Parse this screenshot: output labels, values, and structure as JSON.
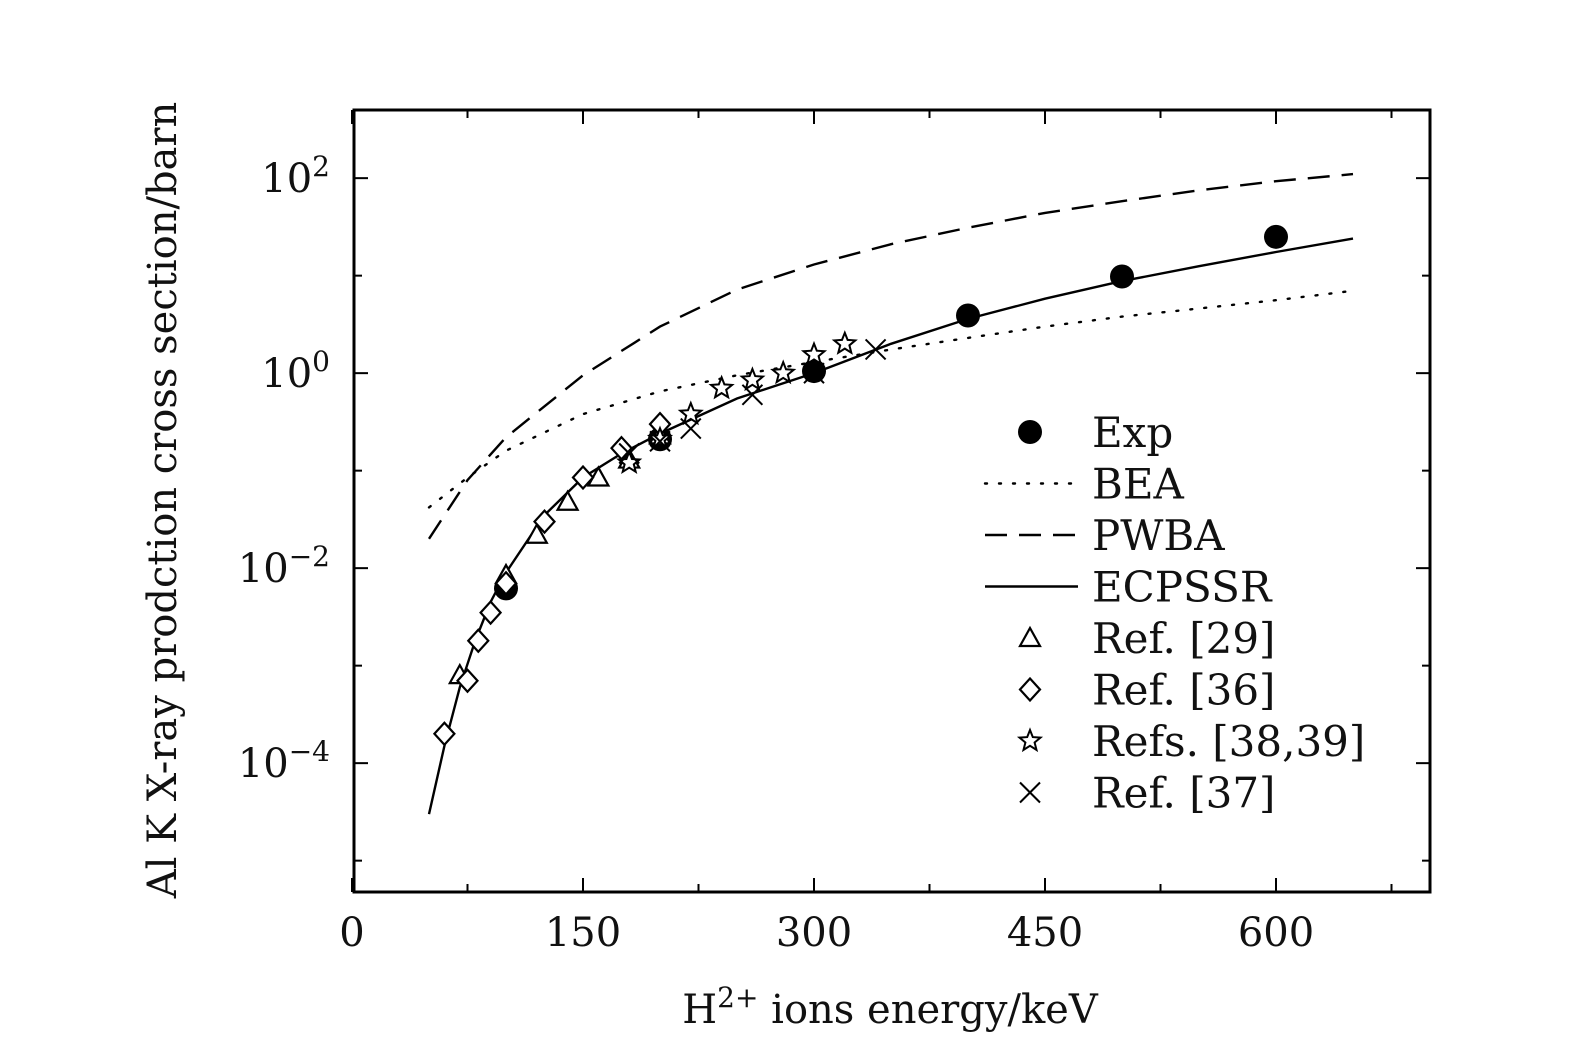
{
  "chart_data": {
    "type": "scatter",
    "xlabel": "ions energy/keV",
    "xlabel_prefix": "H",
    "xlabel_sup": "2+",
    "ylabel": "Al K X-ray prodction cross section/barn",
    "xlim": [
      0,
      700
    ],
    "ylim": [
      5e-06,
      500
    ],
    "yscale": "log",
    "x_ticks": [
      0,
      150,
      300,
      450,
      600
    ],
    "x_tick_labels": [
      "0",
      "150",
      "300",
      "450",
      "600"
    ],
    "y_ticks": [
      {
        "value": 0.0001,
        "base": "10",
        "exp": "−4"
      },
      {
        "value": 0.01,
        "base": "10",
        "exp": "−2"
      },
      {
        "value": 1,
        "base": "10",
        "exp": "0"
      },
      {
        "value": 100,
        "base": "10",
        "exp": "2"
      }
    ],
    "legend_position": "right",
    "series": [
      {
        "name": "Exp",
        "kind": "points",
        "marker": "filled-circle",
        "x": [
          100,
          200,
          300,
          400,
          500,
          600
        ],
        "y": [
          0.0062,
          0.21,
          1.05,
          3.9,
          9.8,
          25
        ]
      },
      {
        "name": "BEA",
        "kind": "line",
        "style": "dotted",
        "x": [
          50,
          75,
          100,
          150,
          200,
          250,
          300,
          350,
          400,
          450,
          500,
          550,
          600,
          650
        ],
        "y": [
          0.042,
          0.085,
          0.16,
          0.38,
          0.65,
          0.95,
          1.3,
          1.75,
          2.3,
          3.0,
          3.8,
          4.6,
          5.6,
          7.0
        ]
      },
      {
        "name": "PWBA",
        "kind": "line",
        "style": "dashed",
        "x": [
          50,
          75,
          100,
          150,
          200,
          250,
          300,
          350,
          400,
          450,
          500,
          550,
          600,
          650
        ],
        "y": [
          0.02,
          0.08,
          0.22,
          0.95,
          3.0,
          7.2,
          13,
          21,
          31,
          44,
          58,
          75,
          93,
          110
        ]
      },
      {
        "name": "ECPSSR",
        "kind": "line",
        "style": "solid",
        "x": [
          50,
          60,
          70,
          80,
          90,
          100,
          125,
          150,
          175,
          200,
          250,
          300,
          350,
          400,
          450,
          500,
          550,
          600,
          650
        ],
        "y": [
          3e-05,
          0.00015,
          0.0006,
          0.0018,
          0.0045,
          0.009,
          0.035,
          0.085,
          0.15,
          0.24,
          0.55,
          1.0,
          2.0,
          3.6,
          5.8,
          8.8,
          12.5,
          17.5,
          24
        ]
      },
      {
        "name": "Ref. [29]",
        "kind": "points",
        "marker": "open-triangle",
        "x": [
          70,
          100,
          120,
          140,
          160,
          180,
          200
        ],
        "y": [
          0.0008,
          0.0085,
          0.022,
          0.048,
          0.085,
          0.13,
          0.23
        ]
      },
      {
        "name": "Ref. [36]",
        "kind": "points",
        "marker": "open-diamond",
        "x": [
          60,
          75,
          82,
          90,
          100,
          125,
          150,
          175,
          200
        ],
        "y": [
          0.0002,
          0.0007,
          0.0018,
          0.0035,
          0.007,
          0.03,
          0.085,
          0.17,
          0.3
        ]
      },
      {
        "name": "Refs. [38,39]",
        "kind": "points",
        "marker": "open-star",
        "x": [
          180,
          200,
          220,
          240,
          260,
          280,
          300,
          320
        ],
        "y": [
          0.12,
          0.21,
          0.38,
          0.7,
          0.85,
          1.0,
          1.55,
          2.0
        ]
      },
      {
        "name": "Ref. [37]",
        "kind": "points",
        "marker": "x",
        "x": [
          180,
          200,
          220,
          260,
          300,
          340
        ],
        "y": [
          0.15,
          0.2,
          0.27,
          0.6,
          1.0,
          1.75
        ]
      }
    ]
  }
}
